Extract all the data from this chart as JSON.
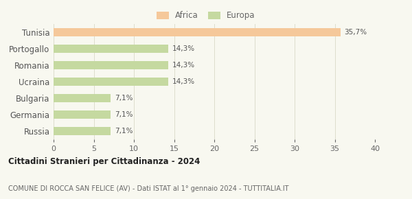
{
  "categories": [
    "Tunisia",
    "Portogallo",
    "Romania",
    "Ucraina",
    "Bulgaria",
    "Germania",
    "Russia"
  ],
  "values": [
    35.7,
    14.3,
    14.3,
    14.3,
    7.1,
    7.1,
    7.1
  ],
  "labels": [
    "35,7%",
    "14,3%",
    "14,3%",
    "14,3%",
    "7,1%",
    "7,1%",
    "7,1%"
  ],
  "colors": [
    "#f5c89a",
    "#c5d9a0",
    "#c5d9a0",
    "#c5d9a0",
    "#c5d9a0",
    "#c5d9a0",
    "#c5d9a0"
  ],
  "legend": [
    {
      "label": "Africa",
      "color": "#f5c89a"
    },
    {
      "label": "Europa",
      "color": "#c5d9a0"
    }
  ],
  "xlim": [
    0,
    40
  ],
  "xticks": [
    0,
    5,
    10,
    15,
    20,
    25,
    30,
    35,
    40
  ],
  "title": "Cittadini Stranieri per Cittadinanza - 2024",
  "subtitle": "COMUNE DI ROCCA SAN FELICE (AV) - Dati ISTAT al 1° gennaio 2024 - TUTTITALIA.IT",
  "background_color": "#f8f8f0",
  "bar_height": 0.5
}
